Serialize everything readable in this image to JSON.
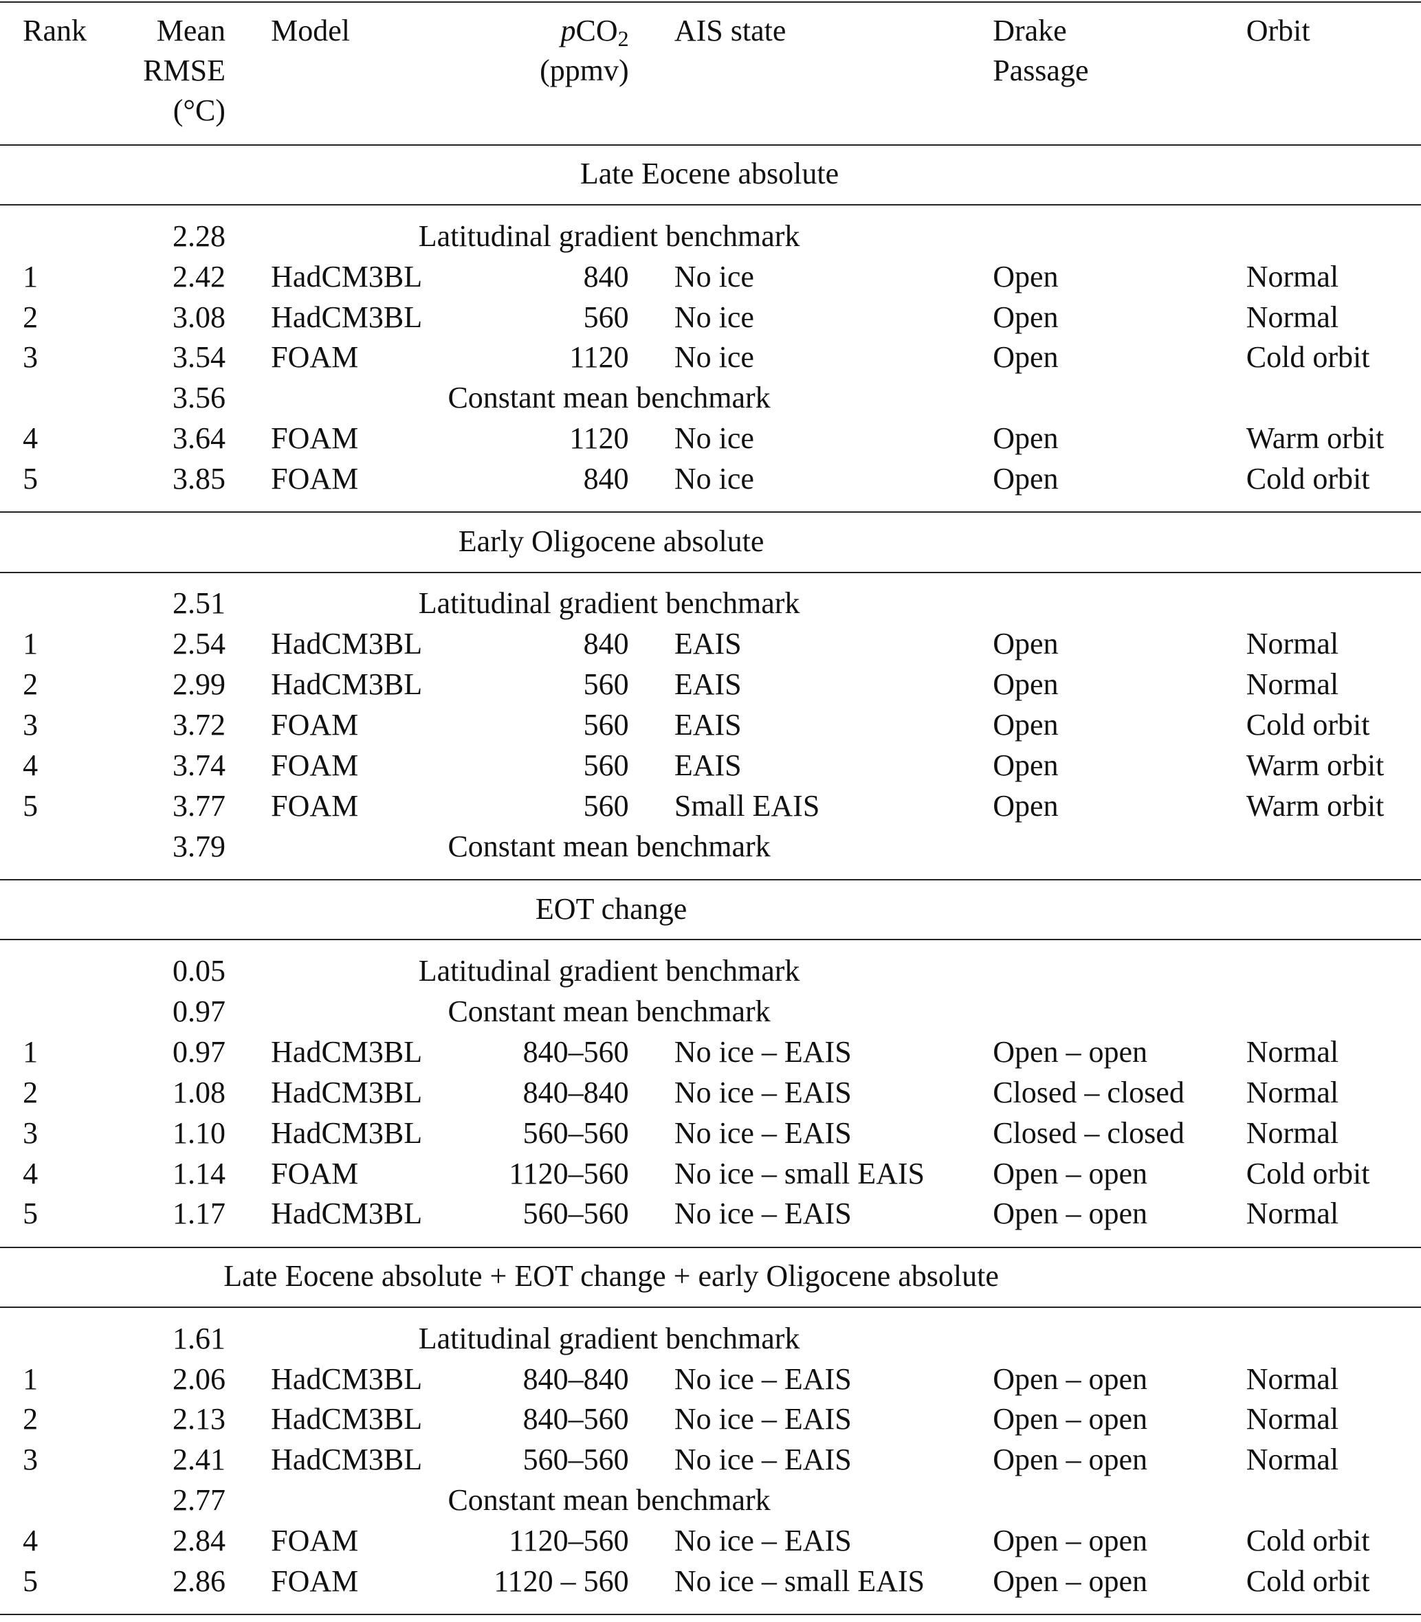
{
  "header": {
    "columns": [
      [
        "Rank"
      ],
      [
        "Mean",
        "RMSE",
        "(°C)"
      ],
      [
        "Model"
      ],
      [
        {
          "italic": "p",
          "text": "CO",
          "sub": "2"
        },
        "(ppmv)"
      ],
      [
        "AIS state"
      ],
      [
        "Drake",
        "Passage"
      ],
      [
        "Orbit"
      ]
    ]
  },
  "sections": [
    {
      "title": "Late Eocene absolute",
      "rows": [
        {
          "rmse": "2.28",
          "benchmark": "Latitudinal gradient benchmark"
        },
        [
          "1",
          "2.42",
          "HadCM3BL",
          "840",
          "No ice",
          "Open",
          "Normal"
        ],
        [
          "2",
          "3.08",
          "HadCM3BL",
          "560",
          "No ice",
          "Open",
          "Normal"
        ],
        [
          "3",
          "3.54",
          "FOAM",
          "1120",
          "No ice",
          "Open",
          "Cold orbit"
        ],
        {
          "rmse": "3.56",
          "benchmark": "Constant mean benchmark"
        },
        [
          "4",
          "3.64",
          "FOAM",
          "1120",
          "No ice",
          "Open",
          "Warm orbit"
        ],
        [
          "5",
          "3.85",
          "FOAM",
          "840",
          "No ice",
          "Open",
          "Cold orbit"
        ]
      ]
    },
    {
      "title": "Early Oligocene absolute",
      "rows": [
        {
          "rmse": "2.51",
          "benchmark": "Latitudinal gradient benchmark"
        },
        [
          "1",
          "2.54",
          "HadCM3BL",
          "840",
          "EAIS",
          "Open",
          "Normal"
        ],
        [
          "2",
          "2.99",
          "HadCM3BL",
          "560",
          "EAIS",
          "Open",
          "Normal"
        ],
        [
          "3",
          "3.72",
          "FOAM",
          "560",
          "EAIS",
          "Open",
          "Cold orbit"
        ],
        [
          "4",
          "3.74",
          "FOAM",
          "560",
          "EAIS",
          "Open",
          "Warm orbit"
        ],
        [
          "5",
          "3.77",
          "FOAM",
          "560",
          "Small EAIS",
          "Open",
          "Warm orbit"
        ],
        {
          "rmse": "3.79",
          "benchmark": "Constant mean benchmark"
        }
      ]
    },
    {
      "title": "EOT change",
      "rows": [
        {
          "rmse": "0.05",
          "benchmark": "Latitudinal gradient benchmark"
        },
        {
          "rmse": "0.97",
          "benchmark": "Constant mean benchmark"
        },
        [
          "1",
          "0.97",
          "HadCM3BL",
          "840–560",
          "No ice – EAIS",
          "Open – open",
          "Normal"
        ],
        [
          "2",
          "1.08",
          "HadCM3BL",
          "840–840",
          "No ice – EAIS",
          "Closed – closed",
          "Normal"
        ],
        [
          "3",
          "1.10",
          "HadCM3BL",
          "560–560",
          "No ice – EAIS",
          "Closed – closed",
          "Normal"
        ],
        [
          "4",
          "1.14",
          "FOAM",
          "1120–560",
          "No ice – small EAIS",
          "Open – open",
          "Cold orbit"
        ],
        [
          "5",
          "1.17",
          "HadCM3BL",
          "560–560",
          "No ice – EAIS",
          "Open – open",
          "Normal"
        ]
      ]
    },
    {
      "title": "Late Eocene absolute + EOT change + early Oligocene absolute",
      "rows": [
        {
          "rmse": "1.61",
          "benchmark": "Latitudinal gradient benchmark"
        },
        [
          "1",
          "2.06",
          "HadCM3BL",
          "840–840",
          "No ice – EAIS",
          "Open – open",
          "Normal"
        ],
        [
          "2",
          "2.13",
          "HadCM3BL",
          "840–560",
          "No ice – EAIS",
          "Open – open",
          "Normal"
        ],
        [
          "3",
          "2.41",
          "HadCM3BL",
          "560–560",
          "No ice – EAIS",
          "Open – open",
          "Normal"
        ],
        {
          "rmse": "2.77",
          "benchmark": "Constant mean benchmark"
        },
        [
          "4",
          "2.84",
          "FOAM",
          "1120–560",
          "No ice – EAIS",
          "Open – open",
          "Cold orbit"
        ],
        [
          "5",
          "2.86",
          "FOAM",
          "1120 – 560",
          "No ice – small EAIS",
          "Open – open",
          "Cold orbit"
        ]
      ]
    }
  ]
}
